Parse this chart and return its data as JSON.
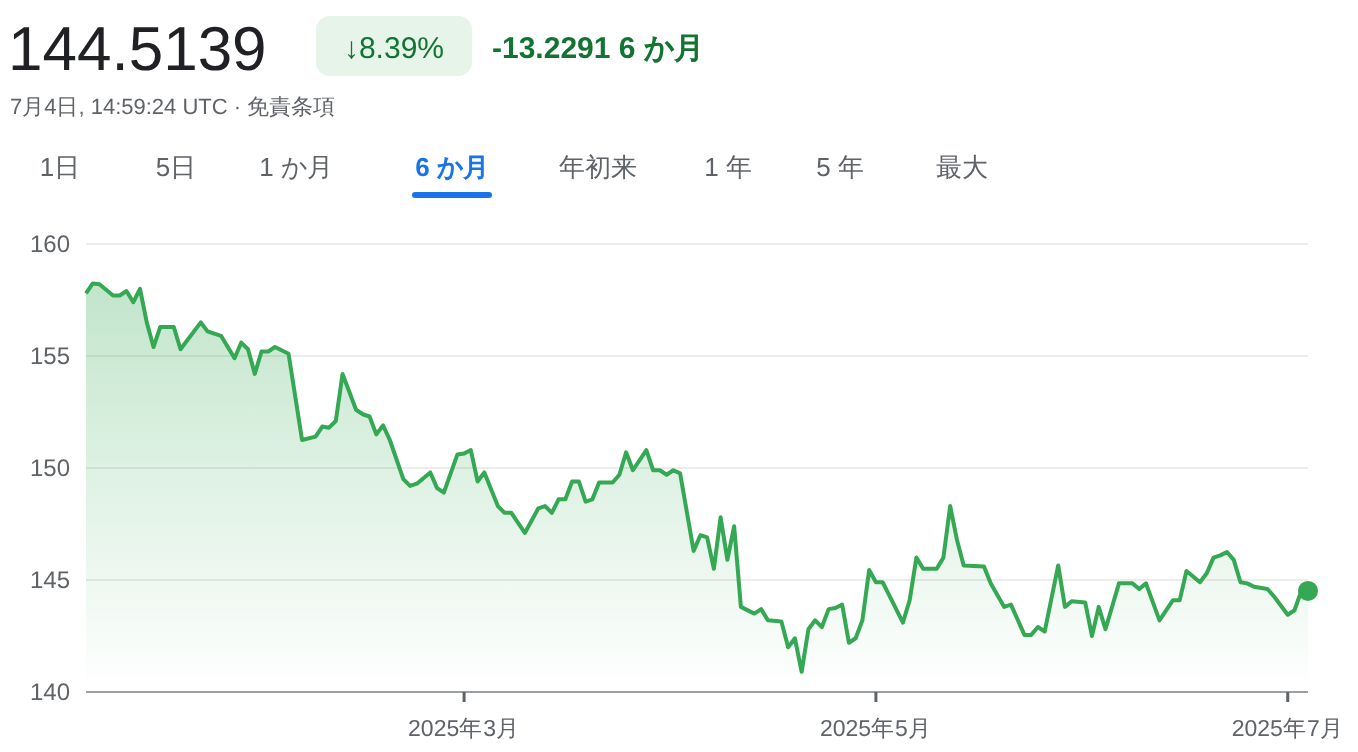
{
  "chart_data": {
    "type": "area",
    "title": "144.5139",
    "annotations": [
      "↓8.39%",
      "-13.2291 6 か月",
      "7月4日, 14:59:24 UTC · 免責条項",
      "1日",
      "5日",
      "1 か月",
      "6 か月",
      "年初来",
      "1 年",
      "5 年",
      "最大"
    ],
    "x": [
      "2025-01-04",
      "2025-01-05",
      "2025-01-06",
      "2025-01-08",
      "2025-01-09",
      "2025-01-10",
      "2025-01-11",
      "2025-01-12",
      "2025-01-13",
      "2025-01-14",
      "2025-01-15",
      "2025-01-17",
      "2025-01-18",
      "2025-01-21",
      "2025-01-22",
      "2025-01-24",
      "2025-01-26",
      "2025-01-27",
      "2025-01-28",
      "2025-01-29",
      "2025-01-30",
      "2025-01-31",
      "2025-02-01",
      "2025-02-03",
      "2025-02-05",
      "2025-02-07",
      "2025-02-08",
      "2025-02-09",
      "2025-02-10",
      "2025-02-11",
      "2025-02-13",
      "2025-02-14",
      "2025-02-15",
      "2025-02-16",
      "2025-02-17",
      "2025-02-18",
      "2025-02-20",
      "2025-02-21",
      "2025-02-22",
      "2025-02-24",
      "2025-02-25",
      "2025-02-26",
      "2025-02-28",
      "2025-03-01",
      "2025-03-02",
      "2025-03-03",
      "2025-03-04",
      "2025-03-06",
      "2025-03-07",
      "2025-03-08",
      "2025-03-10",
      "2025-03-12",
      "2025-03-13",
      "2025-03-14",
      "2025-03-15",
      "2025-03-16",
      "2025-03-17",
      "2025-03-18",
      "2025-03-19",
      "2025-03-20",
      "2025-03-21",
      "2025-03-23",
      "2025-03-24",
      "2025-03-25",
      "2025-03-26",
      "2025-03-28",
      "2025-03-29",
      "2025-03-30",
      "2025-03-31",
      "2025-04-01",
      "2025-04-02",
      "2025-04-04",
      "2025-04-05",
      "2025-04-06",
      "2025-04-07",
      "2025-04-08",
      "2025-04-09",
      "2025-04-10",
      "2025-04-11",
      "2025-04-13",
      "2025-04-14",
      "2025-04-15",
      "2025-04-17",
      "2025-04-18",
      "2025-04-19",
      "2025-04-20",
      "2025-04-21",
      "2025-04-22",
      "2025-04-23",
      "2025-04-24",
      "2025-04-25",
      "2025-04-26",
      "2025-04-27",
      "2025-04-28",
      "2025-04-29",
      "2025-04-30",
      "2025-05-01",
      "2025-05-02",
      "2025-05-03",
      "2025-05-05",
      "2025-05-06",
      "2025-05-07",
      "2025-05-08",
      "2025-05-10",
      "2025-05-11",
      "2025-05-12",
      "2025-05-13",
      "2025-05-14",
      "2025-05-17",
      "2025-05-18",
      "2025-05-20",
      "2025-05-21",
      "2025-05-23",
      "2025-05-24",
      "2025-05-25",
      "2025-05-26",
      "2025-05-28",
      "2025-05-29",
      "2025-05-30",
      "2025-06-01",
      "2025-06-02",
      "2025-06-03",
      "2025-06-04",
      "2025-06-06",
      "2025-06-08",
      "2025-06-09",
      "2025-06-10",
      "2025-06-12",
      "2025-06-14",
      "2025-06-15",
      "2025-06-16",
      "2025-06-18",
      "2025-06-19",
      "2025-06-20",
      "2025-06-21",
      "2025-06-22",
      "2025-06-23",
      "2025-06-24",
      "2025-06-25",
      "2025-06-26",
      "2025-06-28",
      "2025-06-29",
      "2025-07-01",
      "2025-07-02",
      "2025-07-03",
      "2025-07-04"
    ],
    "series": [
      {
        "color": "#34a853",
        "values": [
          157.8,
          158.24,
          158.2,
          157.7,
          157.7,
          157.9,
          157.4,
          158.0,
          156.5,
          155.4,
          156.3,
          156.3,
          155.3,
          156.5,
          156.1,
          155.9,
          154.9,
          155.6,
          155.3,
          154.2,
          155.2,
          155.2,
          155.4,
          155.1,
          151.25,
          151.4,
          151.85,
          151.8,
          152.1,
          154.2,
          152.6,
          152.4,
          152.3,
          151.5,
          151.9,
          151.25,
          149.5,
          149.2,
          149.3,
          149.8,
          149.1,
          148.9,
          150.6,
          150.65,
          150.8,
          149.4,
          149.8,
          148.3,
          148.0,
          148.0,
          147.1,
          148.2,
          148.3,
          148.0,
          148.6,
          148.6,
          149.4,
          149.4,
          148.5,
          148.6,
          149.35,
          149.35,
          149.7,
          150.7,
          149.9,
          150.8,
          149.9,
          149.9,
          149.7,
          149.9,
          149.76,
          146.3,
          147.0,
          146.9,
          145.5,
          147.8,
          145.9,
          147.4,
          143.8,
          143.5,
          143.7,
          143.2,
          143.15,
          142.0,
          142.4,
          140.9,
          142.8,
          143.2,
          142.9,
          143.7,
          143.75,
          143.9,
          142.2,
          142.4,
          143.2,
          145.45,
          144.9,
          144.9,
          144.3,
          143.1,
          144.1,
          146.0,
          145.5,
          145.5,
          146.0,
          148.3,
          146.8,
          145.65,
          145.6,
          144.85,
          143.8,
          143.9,
          142.55,
          142.55,
          142.9,
          142.7,
          145.65,
          143.8,
          144.05,
          144.0,
          142.5,
          143.8,
          142.8,
          144.85,
          144.85,
          144.6,
          144.85,
          143.2,
          144.1,
          144.1,
          145.4,
          144.9,
          145.3,
          146.0,
          146.1,
          146.25,
          145.9,
          144.9,
          144.85,
          144.7,
          144.6,
          144.25,
          143.45,
          143.65,
          144.5,
          144.5139
        ]
      }
    ],
    "xlim": [
      "2025-01-04",
      "2025-07-04"
    ],
    "ylim": [
      140,
      160
    ],
    "yticks": [
      140,
      145,
      150,
      155,
      160
    ],
    "xticks": [
      {
        "value": "2025-03-01",
        "label": "2025年3月"
      },
      {
        "value": "2025-05-01",
        "label": "2025年5月"
      },
      {
        "value": "2025-07-01",
        "label": "2025年7月"
      }
    ],
    "grid": "y"
  }
}
